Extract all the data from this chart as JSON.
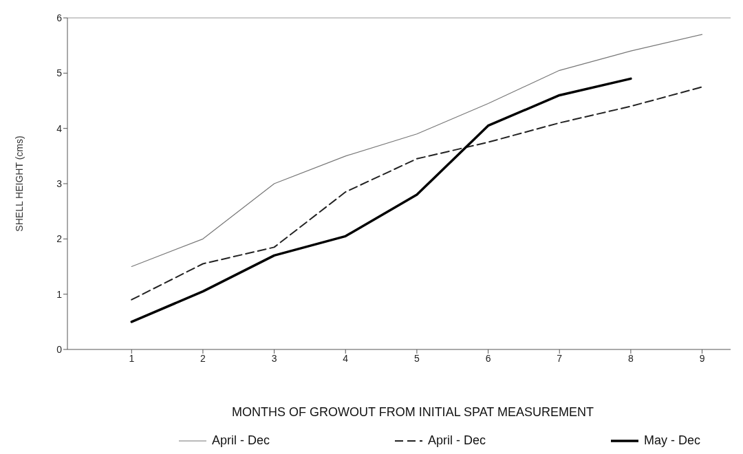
{
  "chart_data": {
    "type": "line",
    "xlabel": "MONTHS OF GROWOUT FROM INITIAL SPAT MEASUREMENT",
    "ylabel": "SHELL HEIGHT (cms)",
    "x": [
      1,
      2,
      3,
      4,
      5,
      6,
      7,
      8,
      9
    ],
    "series": [
      {
        "name": "April - Dec",
        "color": "#777777",
        "line_style": "solid",
        "values": [
          1.5,
          2.0,
          3.0,
          3.5,
          3.9,
          4.45,
          5.05,
          5.4,
          5.7
        ]
      },
      {
        "name": "April - Dec",
        "color": "#222222",
        "line_style": "dashed",
        "values": [
          0.9,
          1.55,
          1.85,
          2.85,
          3.45,
          3.75,
          4.1,
          4.4,
          4.75
        ]
      },
      {
        "name": "May - Dec",
        "color": "#000000",
        "line_style": "solid",
        "values": [
          0.5,
          1.05,
          1.7,
          2.05,
          2.8,
          4.05,
          4.6,
          4.9,
          null
        ]
      }
    ],
    "xlim": [
      0.1,
      9.4
    ],
    "xticks": [
      1,
      2,
      3,
      4,
      5,
      6,
      7,
      8,
      9
    ],
    "ylim": [
      0,
      6
    ],
    "yticks": [
      0,
      1,
      2,
      3,
      4,
      5,
      6
    ],
    "grid": false,
    "legend": "bottom",
    "marker": "none"
  }
}
